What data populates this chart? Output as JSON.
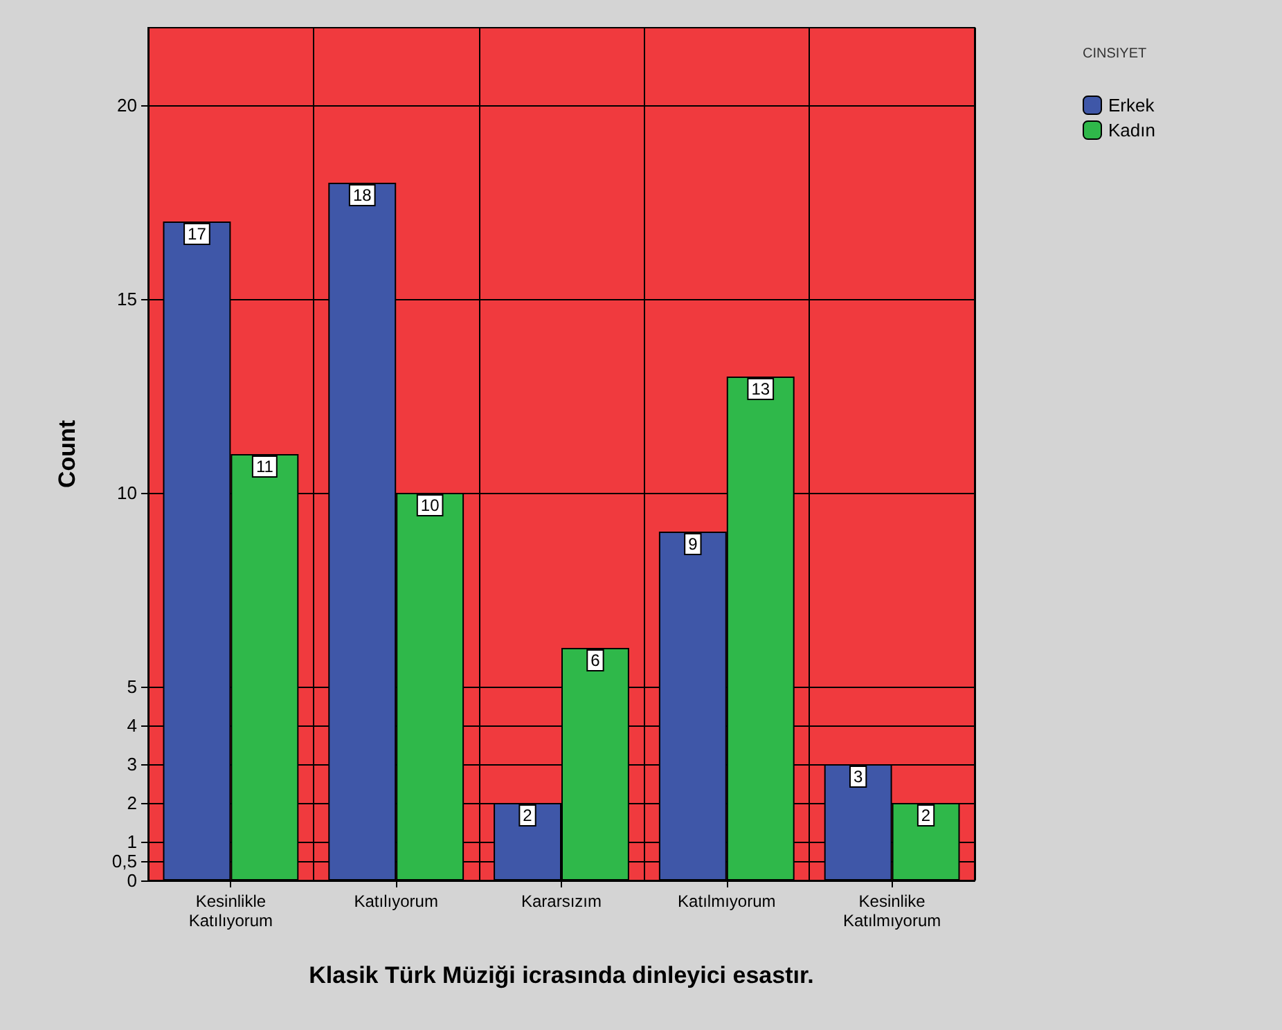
{
  "chart_data": {
    "type": "bar",
    "xlabel": "Klasik Türk Müziği icrasında dinleyici esastır.",
    "ylabel": "Count",
    "legend_title": "CINSIYET",
    "categories": [
      "Kesinlikle\nKatılıyorum",
      "Katılıyorum",
      "Kararsızım",
      "Katılmıyorum",
      "Kesinlike\nKatılmıyorum"
    ],
    "series": [
      {
        "name": "Erkek",
        "color": "#3f57a8",
        "values": [
          17,
          18,
          2,
          9,
          3
        ]
      },
      {
        "name": "Kadın",
        "color": "#2fb84a",
        "values": [
          11,
          10,
          6,
          13,
          2
        ]
      }
    ],
    "ylim": [
      0,
      22
    ],
    "yticks": [
      0,
      {
        "value": 0.5,
        "label": "0,5"
      },
      1,
      2,
      3,
      4,
      5,
      10,
      15,
      20
    ],
    "grid": true,
    "legend": "top right",
    "data_labels": true
  }
}
